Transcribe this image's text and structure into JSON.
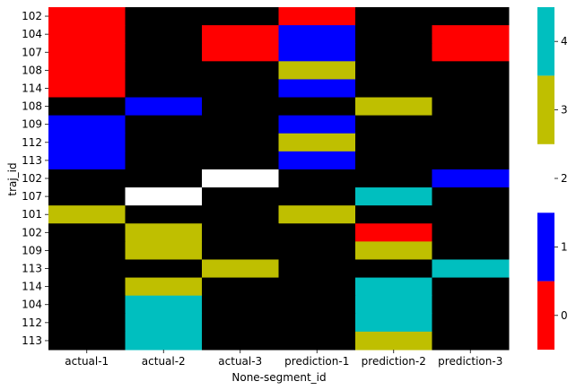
{
  "chart_data": {
    "type": "heatmap",
    "xlabel": "None-segment_id",
    "ylabel": "traj_id",
    "columns": [
      "actual-1",
      "actual-2",
      "actual-3",
      "prediction-1",
      "prediction-2",
      "prediction-3"
    ],
    "rows": [
      "102",
      "104",
      "107",
      "108",
      "114",
      "108",
      "109",
      "112",
      "113",
      "102",
      "107",
      "101",
      "102",
      "109",
      "113",
      "114",
      "104",
      "112",
      "113"
    ],
    "values": [
      [
        0,
        null,
        null,
        0,
        null,
        null
      ],
      [
        0,
        null,
        0,
        1,
        null,
        0
      ],
      [
        0,
        null,
        0,
        1,
        null,
        0
      ],
      [
        0,
        null,
        null,
        3,
        null,
        null
      ],
      [
        0,
        null,
        null,
        1,
        null,
        null
      ],
      [
        null,
        1,
        null,
        null,
        3,
        null
      ],
      [
        1,
        null,
        null,
        1,
        null,
        null
      ],
      [
        1,
        null,
        null,
        3,
        null,
        null
      ],
      [
        1,
        null,
        null,
        1,
        null,
        null
      ],
      [
        null,
        null,
        2,
        null,
        null,
        1
      ],
      [
        null,
        2,
        null,
        null,
        4,
        null
      ],
      [
        3,
        null,
        null,
        3,
        null,
        null
      ],
      [
        null,
        3,
        null,
        null,
        0,
        null
      ],
      [
        null,
        3,
        null,
        null,
        3,
        null
      ],
      [
        null,
        null,
        3,
        null,
        null,
        4
      ],
      [
        null,
        3,
        null,
        null,
        4,
        null
      ],
      [
        null,
        4,
        null,
        null,
        4,
        null
      ],
      [
        null,
        4,
        null,
        null,
        4,
        null
      ],
      [
        null,
        4,
        null,
        null,
        3,
        null
      ]
    ],
    "missing_color": "#000000",
    "colormap": [
      {
        "value": 0,
        "color": "#ff0000"
      },
      {
        "value": 1,
        "color": "#0000ff"
      },
      {
        "value": 2,
        "color": "#ffffff"
      },
      {
        "value": 3,
        "color": "#bfbf00"
      },
      {
        "value": 4,
        "color": "#00bfbf"
      }
    ],
    "colorbar_ticks": [
      "0",
      "1",
      "2",
      "3",
      "4"
    ],
    "colorbar_range": [
      -0.5,
      4.5
    ]
  }
}
